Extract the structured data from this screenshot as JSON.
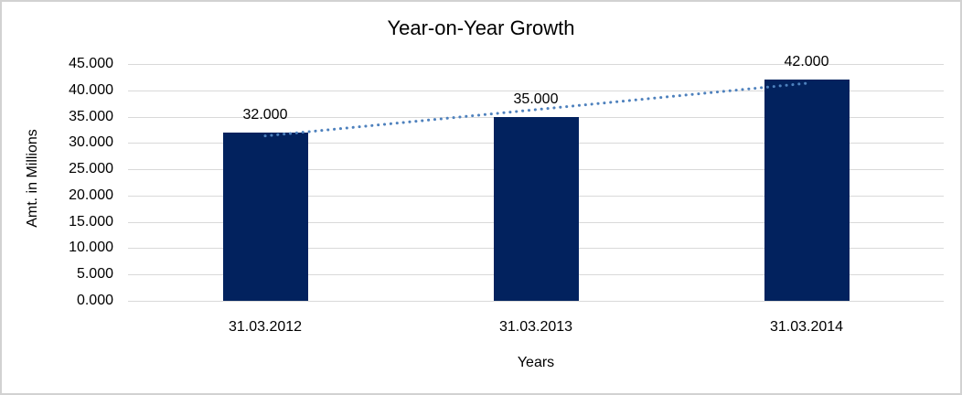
{
  "chart_data": {
    "type": "bar",
    "title": "Year-on-Year Growth",
    "xlabel": "Years",
    "ylabel": "Amt. in Millions",
    "categories": [
      "31.03.2012",
      "31.03.2013",
      "31.03.2014"
    ],
    "values": [
      32000,
      35000,
      42000
    ],
    "value_labels": [
      "32.000",
      "35.000",
      "42.000"
    ],
    "ylim": [
      0,
      45000
    ],
    "ytick_labels": [
      "45.000",
      "40.000",
      "35.000",
      "30.000",
      "25.000",
      "20.000",
      "15.000",
      "10.000",
      "5.000",
      "0.000"
    ],
    "grid": "horizontal",
    "legend": "none",
    "trendline": {
      "style": "dotted",
      "endpoint_values": [
        31333,
        41333
      ]
    },
    "colors": {
      "bar": "#02225e",
      "trendline": "#4e81bd",
      "gridline": "#d9d9d9",
      "text": "#000000",
      "frame_border": "#d2d2d2",
      "background": "#ffffff"
    }
  }
}
